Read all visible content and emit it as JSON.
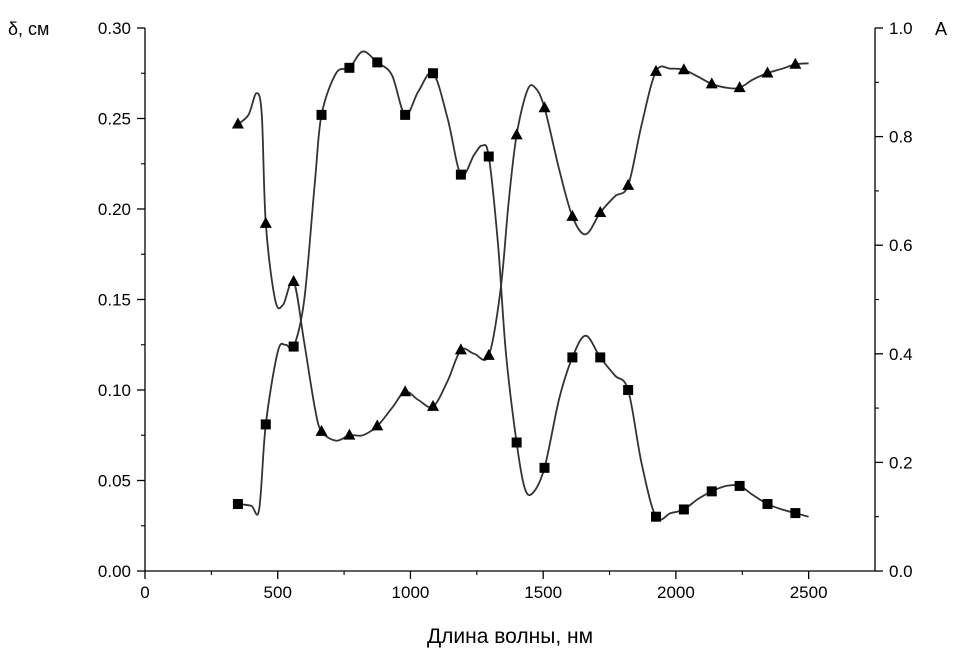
{
  "chart_data": {
    "type": "line",
    "xlabel": "Длина волны, нм",
    "ylabel_left": "δ, см",
    "ylabel_right": "A",
    "xlim": [
      0,
      2750
    ],
    "ylim_left": [
      0,
      0.3
    ],
    "ylim_right": [
      0,
      1.0
    ],
    "x_ticks": [
      "0",
      "500",
      "1000",
      "1500",
      "2000",
      "2500"
    ],
    "y_left_ticks": [
      "0.00",
      "0.05",
      "0.10",
      "0.15",
      "0.20",
      "0.25",
      "0.30"
    ],
    "y_right_ticks": [
      "0.0",
      "0.2",
      "0.4",
      "0.6",
      "0.8",
      "1.0"
    ],
    "grid": false,
    "line_color": "#333333",
    "marker_color": "#000000",
    "series": [
      {
        "marker": "square",
        "axis": "left",
        "points": [
          [
            350,
            0.037
          ],
          [
            455,
            0.081
          ],
          [
            560,
            0.124
          ],
          [
            665,
            0.252
          ],
          [
            770,
            0.278
          ],
          [
            875,
            0.281
          ],
          [
            980,
            0.252
          ],
          [
            1085,
            0.275
          ],
          [
            1190,
            0.219
          ],
          [
            1295,
            0.229
          ],
          [
            1400,
            0.071
          ],
          [
            1505,
            0.057
          ],
          [
            1610,
            0.118
          ],
          [
            1715,
            0.118
          ],
          [
            1820,
            0.1
          ],
          [
            1925,
            0.03
          ],
          [
            2030,
            0.034
          ],
          [
            2135,
            0.044
          ],
          [
            2240,
            0.047
          ],
          [
            2345,
            0.037
          ],
          [
            2450,
            0.032
          ]
        ],
        "curve": [
          [
            350,
            0.037
          ],
          [
            400,
            0.036
          ],
          [
            430,
            0.034
          ],
          [
            455,
            0.081
          ],
          [
            500,
            0.121
          ],
          [
            530,
            0.125
          ],
          [
            560,
            0.124
          ],
          [
            600,
            0.15
          ],
          [
            640,
            0.215
          ],
          [
            665,
            0.252
          ],
          [
            720,
            0.275
          ],
          [
            770,
            0.278
          ],
          [
            820,
            0.287
          ],
          [
            875,
            0.281
          ],
          [
            930,
            0.274
          ],
          [
            980,
            0.252
          ],
          [
            1030,
            0.265
          ],
          [
            1085,
            0.275
          ],
          [
            1140,
            0.25
          ],
          [
            1190,
            0.219
          ],
          [
            1240,
            0.23
          ],
          [
            1270,
            0.235
          ],
          [
            1295,
            0.229
          ],
          [
            1330,
            0.18
          ],
          [
            1360,
            0.12
          ],
          [
            1400,
            0.071
          ],
          [
            1430,
            0.046
          ],
          [
            1460,
            0.043
          ],
          [
            1505,
            0.057
          ],
          [
            1560,
            0.095
          ],
          [
            1610,
            0.118
          ],
          [
            1660,
            0.13
          ],
          [
            1715,
            0.118
          ],
          [
            1770,
            0.108
          ],
          [
            1820,
            0.1
          ],
          [
            1870,
            0.06
          ],
          [
            1925,
            0.03
          ],
          [
            1980,
            0.032
          ],
          [
            2030,
            0.034
          ],
          [
            2085,
            0.04
          ],
          [
            2135,
            0.044
          ],
          [
            2190,
            0.047
          ],
          [
            2240,
            0.047
          ],
          [
            2290,
            0.042
          ],
          [
            2345,
            0.037
          ],
          [
            2400,
            0.034
          ],
          [
            2450,
            0.032
          ],
          [
            2500,
            0.03
          ]
        ]
      },
      {
        "marker": "triangle",
        "axis": "right",
        "points": [
          [
            350,
            0.823
          ],
          [
            455,
            0.64
          ],
          [
            560,
            0.533
          ],
          [
            665,
            0.257
          ],
          [
            770,
            0.25
          ],
          [
            875,
            0.267
          ],
          [
            980,
            0.33
          ],
          [
            1085,
            0.303
          ],
          [
            1190,
            0.407
          ],
          [
            1295,
            0.397
          ],
          [
            1400,
            0.803
          ],
          [
            1505,
            0.853
          ],
          [
            1610,
            0.653
          ],
          [
            1715,
            0.66
          ],
          [
            1820,
            0.71
          ],
          [
            1925,
            0.92
          ],
          [
            2030,
            0.923
          ],
          [
            2135,
            0.897
          ],
          [
            2240,
            0.89
          ],
          [
            2345,
            0.917
          ],
          [
            2450,
            0.933
          ]
        ],
        "curve": [
          [
            350,
            0.823
          ],
          [
            390,
            0.84
          ],
          [
            420,
            0.88
          ],
          [
            440,
            0.84
          ],
          [
            455,
            0.64
          ],
          [
            490,
            0.5
          ],
          [
            520,
            0.49
          ],
          [
            560,
            0.533
          ],
          [
            600,
            0.42
          ],
          [
            640,
            0.3
          ],
          [
            665,
            0.257
          ],
          [
            720,
            0.24
          ],
          [
            770,
            0.25
          ],
          [
            820,
            0.25
          ],
          [
            875,
            0.267
          ],
          [
            930,
            0.3
          ],
          [
            980,
            0.33
          ],
          [
            1030,
            0.315
          ],
          [
            1085,
            0.303
          ],
          [
            1140,
            0.35
          ],
          [
            1190,
            0.407
          ],
          [
            1240,
            0.4
          ],
          [
            1295,
            0.397
          ],
          [
            1340,
            0.52
          ],
          [
            1370,
            0.68
          ],
          [
            1400,
            0.803
          ],
          [
            1440,
            0.885
          ],
          [
            1470,
            0.89
          ],
          [
            1505,
            0.853
          ],
          [
            1560,
            0.74
          ],
          [
            1610,
            0.653
          ],
          [
            1660,
            0.62
          ],
          [
            1715,
            0.66
          ],
          [
            1770,
            0.69
          ],
          [
            1820,
            0.71
          ],
          [
            1870,
            0.82
          ],
          [
            1925,
            0.92
          ],
          [
            1980,
            0.925
          ],
          [
            2030,
            0.923
          ],
          [
            2085,
            0.91
          ],
          [
            2135,
            0.897
          ],
          [
            2190,
            0.89
          ],
          [
            2240,
            0.89
          ],
          [
            2290,
            0.905
          ],
          [
            2345,
            0.917
          ],
          [
            2400,
            0.925
          ],
          [
            2450,
            0.933
          ],
          [
            2500,
            0.935
          ]
        ]
      }
    ]
  }
}
